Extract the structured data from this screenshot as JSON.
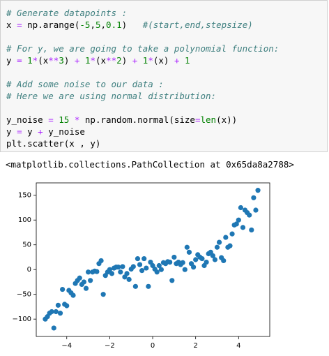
{
  "code": {
    "lines": [
      [
        {
          "text": "# Generate datapoints :",
          "color": "#408080"
        }
      ],
      [
        {
          "text": "x ",
          "color": "#000000"
        },
        {
          "text": "=",
          "color": "#aa22ff"
        },
        {
          "text": " np.arange(",
          "color": "#000000"
        },
        {
          "text": "-5",
          "color": "#008000"
        },
        {
          "text": ",",
          "color": "#000000"
        },
        {
          "text": "5",
          "color": "#008000"
        },
        {
          "text": ",",
          "color": "#000000"
        },
        {
          "text": "0.1",
          "color": "#008000"
        },
        {
          "text": ")   ",
          "color": "#000000"
        },
        {
          "text": "#(start,end,stepsize)",
          "color": "#408080"
        }
      ],
      [],
      [
        {
          "text": "# For y, we are going to take a polynomial function:",
          "color": "#408080"
        }
      ],
      [
        {
          "text": "y ",
          "color": "#000000"
        },
        {
          "text": "=",
          "color": "#aa22ff"
        },
        {
          "text": " 1",
          "color": "#008000"
        },
        {
          "text": "*",
          "color": "#aa22ff"
        },
        {
          "text": "(x",
          "color": "#000000"
        },
        {
          "text": "**",
          "color": "#aa22ff"
        },
        {
          "text": "3",
          "color": "#008000"
        },
        {
          "text": ") ",
          "color": "#000000"
        },
        {
          "text": "+",
          "color": "#aa22ff"
        },
        {
          "text": " 1",
          "color": "#008000"
        },
        {
          "text": "*",
          "color": "#aa22ff"
        },
        {
          "text": "(x",
          "color": "#000000"
        },
        {
          "text": "**",
          "color": "#aa22ff"
        },
        {
          "text": "2",
          "color": "#008000"
        },
        {
          "text": ") ",
          "color": "#000000"
        },
        {
          "text": "+",
          "color": "#aa22ff"
        },
        {
          "text": " 1",
          "color": "#008000"
        },
        {
          "text": "*",
          "color": "#aa22ff"
        },
        {
          "text": "(x) ",
          "color": "#000000"
        },
        {
          "text": "+",
          "color": "#aa22ff"
        },
        {
          "text": " 1",
          "color": "#008000"
        }
      ],
      [],
      [
        {
          "text": "# Add some noise to our data :",
          "color": "#408080"
        }
      ],
      [
        {
          "text": "# Here we are using normal distribution:",
          "color": "#408080"
        }
      ],
      [],
      [
        {
          "text": "y_noise ",
          "color": "#000000"
        },
        {
          "text": "=",
          "color": "#aa22ff"
        },
        {
          "text": " 15",
          "color": "#008000"
        },
        {
          "text": " * ",
          "color": "#aa22ff"
        },
        {
          "text": "np.random.normal(size",
          "color": "#000000"
        },
        {
          "text": "=",
          "color": "#aa22ff"
        },
        {
          "text": "len",
          "color": "#008000"
        },
        {
          "text": "(x))",
          "color": "#000000"
        }
      ],
      [
        {
          "text": "y ",
          "color": "#000000"
        },
        {
          "text": "=",
          "color": "#aa22ff"
        },
        {
          "text": " y ",
          "color": "#000000"
        },
        {
          "text": "+",
          "color": "#aa22ff"
        },
        {
          "text": " y_noise",
          "color": "#000000"
        }
      ],
      [
        {
          "text": "plt.scatter(x , y)",
          "color": "#000000"
        }
      ]
    ]
  },
  "output": "<matplotlib.collections.PathCollection at 0x65da8a2788>",
  "chart_data": {
    "type": "scatter",
    "color": "#1f77b4",
    "x": [
      -5,
      -4.9,
      -4.8,
      -4.7,
      -4.6,
      -4.5,
      -4.4,
      -4.3,
      -4.2,
      -4.1,
      -4,
      -3.9,
      -3.8,
      -3.7,
      -3.6,
      -3.5,
      -3.4,
      -3.3,
      -3.2,
      -3.1,
      -3,
      -2.9,
      -2.8,
      -2.7,
      -2.6,
      -2.5,
      -2.4,
      -2.3,
      -2.2,
      -2.1,
      -2,
      -1.9,
      -1.8,
      -1.7,
      -1.6,
      -1.5,
      -1.4,
      -1.3,
      -1.2,
      -1.1,
      -1,
      -0.9,
      -0.8,
      -0.7,
      -0.6,
      -0.5,
      -0.4,
      -0.3,
      -0.2,
      -0.1,
      0,
      0.1,
      0.2,
      0.3,
      0.4,
      0.5,
      0.6,
      0.7,
      0.8,
      0.9,
      1,
      1.1,
      1.2,
      1.3,
      1.4,
      1.5,
      1.6,
      1.7,
      1.8,
      1.9,
      2,
      2.1,
      2.2,
      2.3,
      2.4,
      2.5,
      2.6,
      2.7,
      2.8,
      2.9,
      3,
      3.1,
      3.2,
      3.3,
      3.4,
      3.5,
      3.6,
      3.7,
      3.8,
      3.9,
      4,
      4.1,
      4.2,
      4.3,
      4.4,
      4.5,
      4.6,
      4.7,
      4.8,
      4.9
    ],
    "values": [
      -100,
      -95,
      -88,
      -85,
      -118,
      -85,
      -72,
      -88,
      -40,
      -70,
      -73,
      -42,
      -47,
      -52,
      -28,
      -22,
      -17,
      -30,
      -25,
      -38,
      -5,
      -22,
      -5,
      -3,
      -4,
      12,
      18,
      -50,
      -12,
      -5,
      0,
      -8,
      3,
      5,
      5,
      -5,
      6,
      -15,
      -8,
      -20,
      1,
      6,
      -34,
      22,
      10,
      -2,
      22,
      3,
      -34,
      15,
      8,
      1,
      -5,
      8,
      0,
      14,
      12,
      16,
      15,
      -22,
      25,
      12,
      15,
      10,
      14,
      0,
      45,
      35,
      12,
      5,
      20,
      30,
      25,
      22,
      8,
      15,
      32,
      35,
      28,
      20,
      45,
      55,
      24,
      18,
      65,
      45,
      48,
      72,
      90,
      92,
      100,
      125,
      85,
      120,
      115,
      110,
      80,
      145,
      120,
      160
    ],
    "xlim": [
      -5.42,
      5.45
    ],
    "ylim": [
      -135,
      175
    ],
    "xticks": [
      {
        "value": -4,
        "label": "−4"
      },
      {
        "value": -2,
        "label": "−2"
      },
      0,
      2,
      4
    ],
    "yticks": [
      {
        "value": -100,
        "label": "−100"
      },
      {
        "value": -50,
        "label": "−50"
      },
      0,
      50,
      100,
      150
    ]
  }
}
